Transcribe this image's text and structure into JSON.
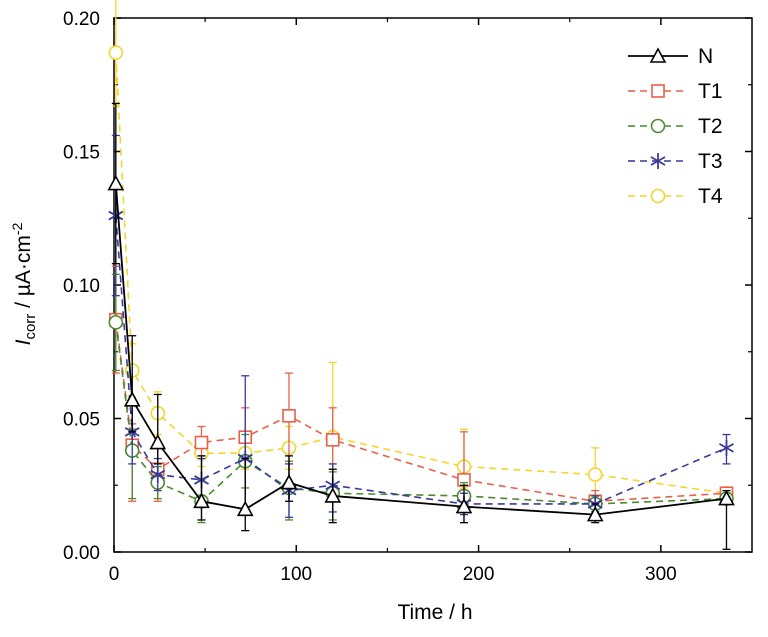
{
  "chart_data": {
    "type": "line",
    "xlabel": "Time / h",
    "ylabel_main": "I",
    "ylabel_sub": "corr",
    "ylabel_rest": " / µA·cm",
    "ylabel_sup": "-2",
    "xlim": [
      0,
      350
    ],
    "ylim": [
      0,
      0.2
    ],
    "xticks": [
      0,
      100,
      200,
      300
    ],
    "xtick_labels": [
      "0",
      "100",
      "200",
      "300"
    ],
    "yticks": [
      0,
      0.05,
      0.1,
      0.15,
      0.2
    ],
    "ytick_labels": [
      "0.00",
      "0.05",
      "0.10",
      "0.15",
      "0.20"
    ],
    "grid": false,
    "legend_position": "top-right",
    "x": [
      1,
      10,
      24,
      48,
      72,
      96,
      120,
      192,
      264,
      336
    ],
    "series": [
      {
        "name": "N",
        "color": "#000000",
        "marker": "triangle",
        "dashed": false,
        "values": [
          0.138,
          0.057,
          0.041,
          0.019,
          0.016,
          0.026,
          0.021,
          0.017,
          0.014,
          0.02
        ],
        "err_low": [
          0.03,
          0.012,
          0.008,
          0.007,
          0.008,
          0.007,
          0.01,
          0.006,
          0.003,
          0.019
        ],
        "err_high": [
          0.03,
          0.024,
          0.018,
          0.017,
          0.019,
          0.01,
          0.01,
          0.008,
          0.004,
          0.003
        ]
      },
      {
        "name": "T1",
        "color": "#e8604a",
        "marker": "square",
        "dashed": true,
        "values": [
          0.087,
          0.04,
          0.031,
          0.041,
          0.043,
          0.051,
          0.042,
          0.027,
          0.019,
          0.022
        ],
        "err_low": [
          0.02,
          0.021,
          0.012,
          0.005,
          0.01,
          0.025,
          0.02,
          0.016,
          0.004,
          0.002
        ],
        "err_high": [
          0.02,
          0.008,
          0.01,
          0.006,
          0.011,
          0.016,
          0.012,
          0.018,
          0.004,
          0.002
        ]
      },
      {
        "name": "T2",
        "color": "#4a8a30",
        "marker": "circle",
        "dashed": true,
        "values": [
          0.086,
          0.038,
          0.026,
          0.019,
          0.034,
          0.024,
          0.022,
          0.021,
          0.018,
          0.02
        ],
        "err_low": [
          0.018,
          0.018,
          0.006,
          0.008,
          0.01,
          0.012,
          0.01,
          0.006,
          0.003,
          0.002
        ],
        "err_high": [
          0.018,
          0.008,
          0.006,
          0.008,
          0.01,
          0.01,
          0.008,
          0.005,
          0.003,
          0.002
        ]
      },
      {
        "name": "T3",
        "color": "#3a3a9a",
        "marker": "asterisk",
        "dashed": true,
        "values": [
          0.126,
          0.045,
          0.029,
          0.027,
          0.035,
          0.023,
          0.025,
          0.018,
          0.018,
          0.039
        ],
        "err_low": [
          0.03,
          0.012,
          0.006,
          0.01,
          0.02,
          0.01,
          0.01,
          0.004,
          0.003,
          0.006
        ],
        "err_high": [
          0.03,
          0.012,
          0.006,
          0.008,
          0.031,
          0.01,
          0.008,
          0.004,
          0.003,
          0.005
        ]
      },
      {
        "name": "T4",
        "color": "#f2d62e",
        "marker": "circle",
        "dashed": true,
        "values": [
          0.187,
          0.068,
          0.052,
          0.037,
          0.037,
          0.039,
          0.043,
          0.032,
          0.029,
          0.022
        ],
        "err_low": [
          0.02,
          0.01,
          0.008,
          0.005,
          0.006,
          0.008,
          0.012,
          0.008,
          0.008,
          0.002
        ],
        "err_high": [
          0.02,
          0.01,
          0.008,
          0.006,
          0.006,
          0.008,
          0.028,
          0.014,
          0.01,
          0.002
        ]
      }
    ]
  }
}
